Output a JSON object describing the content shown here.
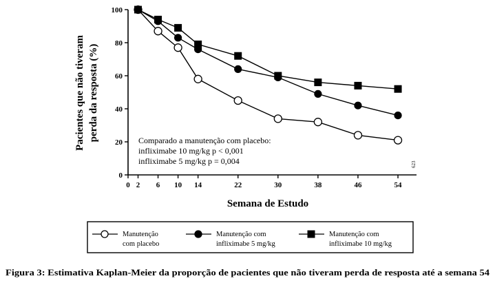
{
  "chart_data": {
    "type": "line",
    "x": [
      0,
      2,
      6,
      10,
      14,
      22,
      30,
      38,
      46,
      54
    ],
    "x_tick_labels": [
      "0",
      "2",
      "6",
      "10",
      "14",
      "22",
      "30",
      "38",
      "46",
      "54"
    ],
    "y_ticks": [
      0,
      20,
      40,
      60,
      80,
      100
    ],
    "xlim": [
      0,
      56
    ],
    "ylim": [
      0,
      100
    ],
    "xlabel": "Semana de Estudo",
    "ylabel_lines": [
      "Pacientes que não tiveram",
      "perda da resposta (%)"
    ],
    "series": [
      {
        "key": "placebo",
        "marker": "open-circle",
        "legend_lines": [
          "Manutenção",
          "com placebo"
        ],
        "x": [
          2,
          6,
          10,
          14,
          22,
          30,
          38,
          46,
          54
        ],
        "values": [
          100,
          87,
          77,
          58,
          45,
          34,
          32,
          24,
          21
        ]
      },
      {
        "key": "inflix5",
        "marker": "filled-circle",
        "legend_lines": [
          "Manutenção com",
          "infliximabe 5 mg/kg"
        ],
        "x": [
          2,
          6,
          10,
          14,
          22,
          30,
          38,
          46,
          54
        ],
        "values": [
          100,
          93,
          83,
          76,
          64,
          59,
          49,
          42,
          36
        ]
      },
      {
        "key": "inflix10",
        "marker": "filled-square",
        "legend_lines": [
          "Manutenção com",
          "infliximabe 10 mg/kg"
        ],
        "x": [
          2,
          6,
          10,
          14,
          22,
          30,
          38,
          46,
          54
        ],
        "values": [
          100,
          94,
          89,
          79,
          72,
          60,
          56,
          54,
          52
        ]
      }
    ],
    "annotation_lines": [
      "Comparado a manutenção com placebo:",
      "infliximabe 10 mg/kg p < 0,001",
      "infliximabe 5 mg/kg p = 0,004"
    ],
    "code_label": "623",
    "legend_position": "bottom",
    "grid": false,
    "caption": "Figura 3: Estimativa Kaplan-Meier da proporção de pacientes que não tiveram perda de resposta até a semana 54"
  }
}
